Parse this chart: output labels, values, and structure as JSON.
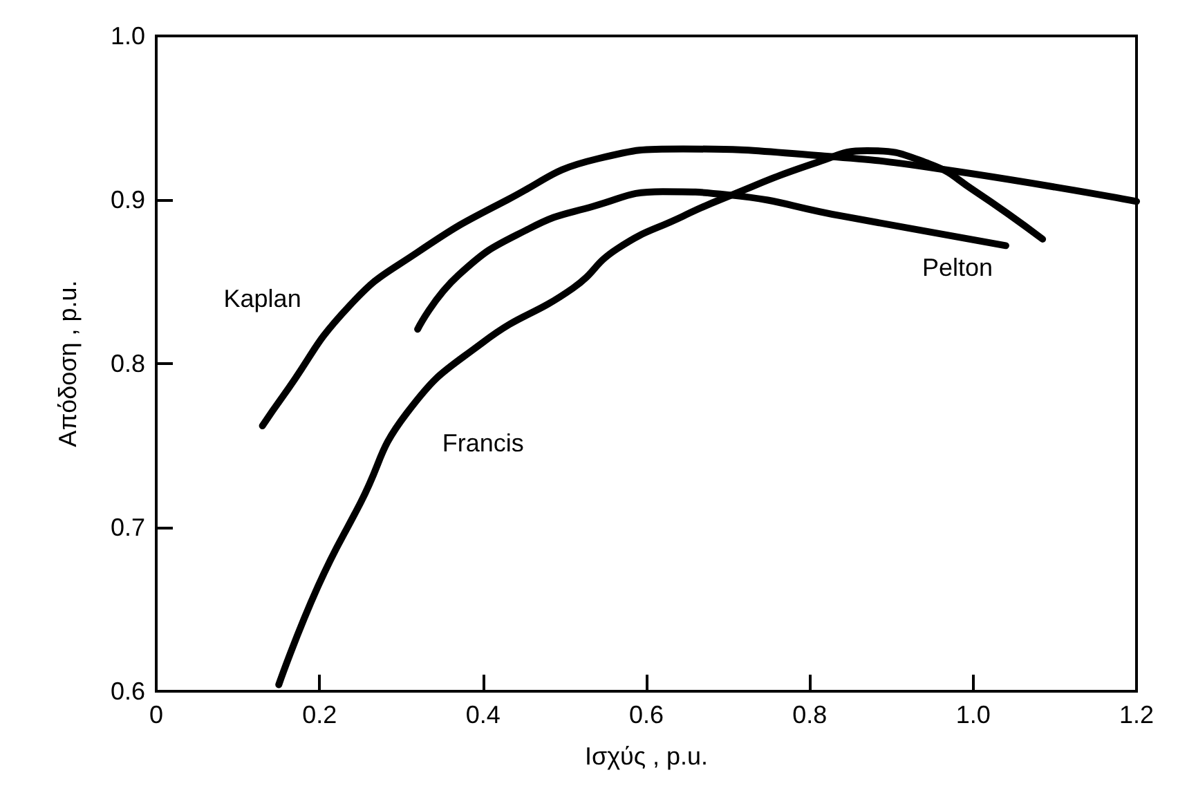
{
  "chart_data": {
    "type": "line",
    "xlabel": "Ισχύς , p.u.",
    "ylabel": "Απόδοση , p.u.",
    "xlim": [
      0,
      1.2
    ],
    "xticks": [
      0,
      0.2,
      0.4,
      0.6,
      0.8,
      {
        "value": 1,
        "label": "1.0"
      },
      1.2
    ],
    "ylim": [
      0.6,
      1.0
    ],
    "yticks": [
      0.6,
      0.7,
      0.8,
      0.9,
      {
        "value": 1,
        "label": "1.0"
      }
    ],
    "grid": false,
    "marker": "none",
    "line_style": "solid",
    "series": [
      {
        "name": "Kaplan",
        "color": "#000000",
        "x": [
          0.13,
          0.155,
          0.236,
          0.32,
          0.43,
          0.54,
          0.645,
          0.81,
          0.957,
          1.2
        ],
        "values": [
          0.762,
          0.78,
          0.835,
          0.868,
          0.9,
          0.925,
          0.931,
          0.927,
          0.919,
          0.899
        ]
      },
      {
        "name": "Pelton",
        "color": "#000000",
        "x": [
          0.32,
          0.37,
          0.455,
          0.535,
          0.62,
          0.7,
          0.84,
          1.04
        ],
        "values": [
          0.821,
          0.854,
          0.882,
          0.896,
          0.905,
          0.903,
          0.89,
          0.872
        ]
      },
      {
        "name": "Francis",
        "color": "#000000",
        "x": [
          0.15,
          0.198,
          0.25,
          0.307,
          0.4,
          0.51,
          0.564,
          0.645,
          0.69,
          0.81,
          0.87,
          0.946,
          1.0,
          1.085
        ],
        "values": [
          0.604,
          0.664,
          0.715,
          0.77,
          0.813,
          0.846,
          0.87,
          0.89,
          0.9,
          0.923,
          0.93,
          0.922,
          0.906,
          0.876
        ]
      }
    ]
  }
}
